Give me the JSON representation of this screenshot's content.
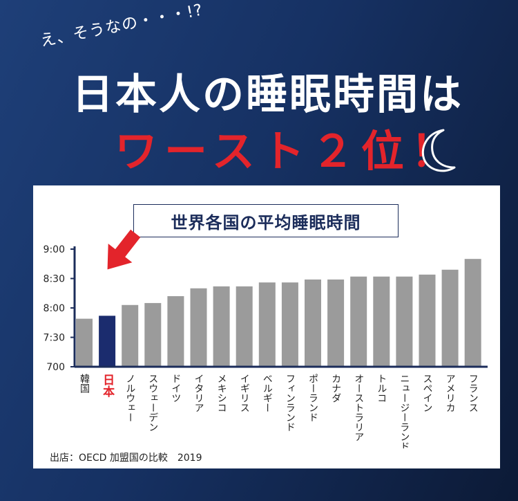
{
  "header": {
    "handwritten": "え、そうなの・・・!?",
    "title_line1": "日本人の睡眠時間は",
    "title_line2": "ワースト２位！"
  },
  "colors": {
    "background": "#1a3a72",
    "accent_red": "#e3242b",
    "bar_gray": "#9b9b9b",
    "bar_highlight": "#1b2c6e",
    "axis_navy": "#1b2c5a"
  },
  "icons": [
    "moon-icon",
    "arrow-down-icon"
  ],
  "chart_data": {
    "type": "bar",
    "title": "世界各国の平均睡眠時間",
    "ylabel": "",
    "xlabel": "",
    "y_ticks": [
      "9:00",
      "8:30",
      "8:00",
      "7:30",
      "700"
    ],
    "ylim_minutes": [
      420,
      540
    ],
    "highlight": "日本",
    "categories": [
      "韓国",
      "日本",
      "ノルウェー",
      "スウェーデン",
      "ドイツ",
      "イタリア",
      "メキシコ",
      "イギリス",
      "ベルギー",
      "フィンランド",
      "ポーランド",
      "カナダ",
      "オーストラリア",
      "トルコ",
      "ニュージーランド",
      "スペイン",
      "アメリカ",
      "フランス"
    ],
    "values_minutes": [
      469,
      472,
      483,
      485,
      492,
      500,
      502,
      502,
      506,
      506,
      509,
      509,
      512,
      512,
      512,
      514,
      519,
      530
    ]
  },
  "source": "出店：OECD 加盟国の比較　2019"
}
